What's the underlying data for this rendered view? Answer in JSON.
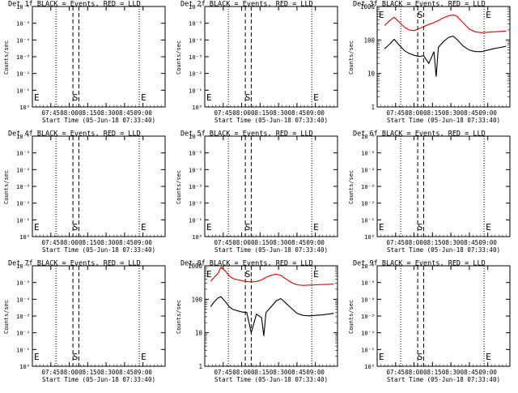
{
  "figure": {
    "xlabel": "Start Time (05-Jun-18 07:33:40)",
    "ylabel": "Counts/sec",
    "x_tick_labels": [
      "07:45",
      "08:00",
      "08:15",
      "08:30",
      "08:45",
      "09:00"
    ],
    "y_tick_labels_empty": [
      "10⁰",
      "10⁻¹",
      "10⁻²",
      "10⁻³",
      "10⁻⁴",
      "10⁻⁵",
      "10⁻⁶"
    ],
    "y_tick_labels_log": [
      "1",
      "10",
      "100",
      "1000"
    ],
    "marker_labels": {
      "start": "E",
      "saa": "S",
      "end": "E"
    },
    "colors": {
      "events": "#000000",
      "lld": "#e00000",
      "frame": "#000000"
    }
  },
  "chart_data": [
    {
      "type": "line",
      "title": "Det 1f BLACK = Events, RED = LLD",
      "scale": "empty",
      "series": []
    },
    {
      "type": "line",
      "title": "Det 2f BLACK = Events, RED = LLD",
      "scale": "empty",
      "series": []
    },
    {
      "type": "line",
      "title": "Det 3f BLACK = Events, RED = LLD",
      "scale": "log",
      "ylim": [
        1,
        1000
      ],
      "series": [
        {
          "color": "red",
          "x": [
            7.6,
            7.67,
            7.73,
            7.8,
            7.87,
            7.93,
            8.0,
            8.07,
            8.13,
            8.2,
            8.27,
            8.33,
            8.4,
            8.47,
            8.53,
            8.58,
            8.67,
            8.75,
            8.83,
            8.92,
            9.0,
            9.08,
            9.17,
            9.25
          ],
          "y": [
            270,
            380,
            480,
            340,
            240,
            200,
            190,
            220,
            250,
            290,
            330,
            380,
            460,
            530,
            560,
            510,
            320,
            210,
            175,
            165,
            170,
            175,
            180,
            185
          ]
        },
        {
          "color": "black",
          "x": [
            7.6,
            7.67,
            7.73,
            7.8,
            7.87,
            7.93,
            8.0,
            8.07,
            8.13,
            8.2,
            8.27,
            8.3,
            8.33,
            8.4,
            8.47,
            8.53,
            8.58,
            8.67,
            8.75,
            8.83,
            8.92,
            9.0,
            9.08,
            9.17,
            9.25
          ],
          "y": [
            55,
            75,
            105,
            70,
            48,
            40,
            35,
            32,
            34,
            20,
            45,
            8,
            60,
            90,
            120,
            130,
            105,
            65,
            50,
            45,
            45,
            50,
            55,
            60,
            65
          ]
        }
      ]
    },
    {
      "type": "line",
      "title": "Det 4f BLACK = Events, RED = LLD",
      "scale": "empty",
      "series": []
    },
    {
      "type": "line",
      "title": "Det 5f BLACK = Events, RED = LLD",
      "scale": "empty",
      "series": []
    },
    {
      "type": "line",
      "title": "Det 6f BLACK = Events, RED = LLD",
      "scale": "empty",
      "series": []
    },
    {
      "type": "line",
      "title": "Det 7f BLACK = Events, RED = LLD",
      "scale": "empty",
      "series": []
    },
    {
      "type": "line",
      "title": "Det 8f BLACK = Events, RED = LLD",
      "scale": "log",
      "ylim": [
        1,
        1000
      ],
      "series": [
        {
          "color": "red",
          "x": [
            7.58,
            7.63,
            7.68,
            7.72,
            7.78,
            7.83,
            7.88,
            7.95,
            8.0,
            8.07,
            8.13,
            8.2,
            8.27,
            8.33,
            8.4,
            8.47,
            8.53,
            8.58,
            8.67,
            8.75,
            8.83,
            8.92,
            9.0,
            9.08,
            9.17,
            9.25
          ],
          "y": [
            350,
            450,
            600,
            900,
            700,
            500,
            420,
            380,
            360,
            340,
            330,
            340,
            380,
            450,
            520,
            560,
            520,
            430,
            320,
            270,
            260,
            265,
            270,
            275,
            280,
            285
          ]
        },
        {
          "color": "black",
          "x": [
            7.58,
            7.63,
            7.68,
            7.72,
            7.78,
            7.83,
            7.88,
            7.95,
            8.0,
            8.07,
            8.13,
            8.2,
            8.27,
            8.3,
            8.33,
            8.4,
            8.47,
            8.53,
            8.58,
            8.67,
            8.75,
            8.83,
            8.92,
            9.0,
            9.08,
            9.17,
            9.25
          ],
          "y": [
            60,
            85,
            110,
            120,
            85,
            60,
            50,
            45,
            42,
            40,
            10,
            36,
            28,
            8,
            40,
            60,
            90,
            105,
            85,
            55,
            38,
            33,
            32,
            33,
            34,
            36,
            38
          ]
        }
      ]
    },
    {
      "type": "line",
      "title": "Det 9f BLACK = Events, RED = LLD",
      "scale": "empty",
      "series": []
    }
  ]
}
